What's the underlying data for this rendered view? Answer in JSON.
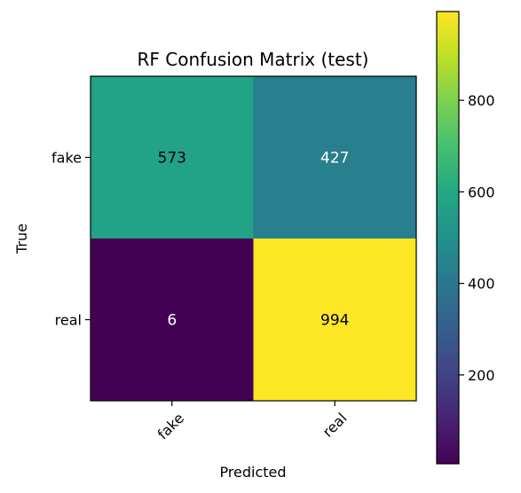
{
  "chart_data": {
    "type": "heatmap",
    "title": "RF Confusion Matrix (test)",
    "xlabel": "Predicted",
    "ylabel": "True",
    "x_categories": [
      "fake",
      "real"
    ],
    "y_categories": [
      "fake",
      "real"
    ],
    "values": [
      [
        573,
        427
      ],
      [
        6,
        994
      ]
    ],
    "colormap": "viridis",
    "value_range": [
      6,
      994
    ],
    "colorbar_ticks": [
      200,
      400,
      600,
      800
    ],
    "colors": {
      "low": "#440154",
      "high": "#fde725",
      "light_text": "#ffffff",
      "dark_text": "#000000"
    }
  }
}
